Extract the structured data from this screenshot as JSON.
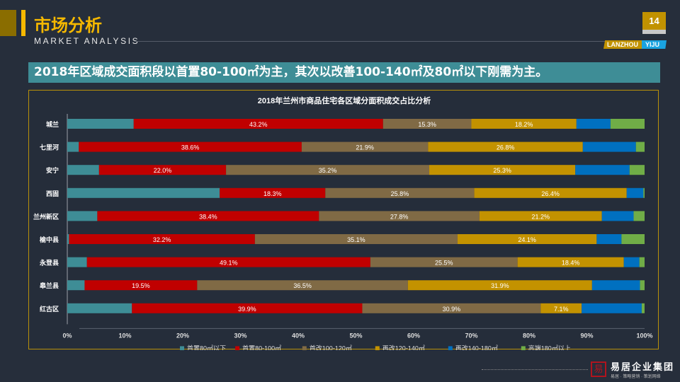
{
  "header": {
    "title": "市场分析",
    "subtitle": "MARKET ANALYSIS",
    "page_number": "14",
    "tag_left": "LANZHOU",
    "tag_right": "YIJU"
  },
  "banner": "2018年区域成交面积段以首置80-100㎡为主，其次以改善100-140㎡及80㎡以下刚需为主。",
  "logo": {
    "name": "易居企业集团",
    "seal": "易居",
    "tagline": "易居 · 策略营销 · 策划网络"
  },
  "chart_data": {
    "type": "bar",
    "orientation": "horizontal",
    "stacked": "percent",
    "title": "2018年兰州市商品住宅各区域分面积成交占比分析",
    "categories": [
      "城兰",
      "七里河",
      "安宁",
      "西固",
      "兰州新区",
      "榆中县",
      "永登县",
      "皋兰县",
      "红古区"
    ],
    "xlim": [
      0,
      100
    ],
    "xticks": [
      "0%",
      "10%",
      "20%",
      "30%",
      "40%",
      "50%",
      "60%",
      "70%",
      "80%",
      "90%",
      "100%"
    ],
    "legend_position": "bottom",
    "grid": false,
    "series": [
      {
        "name": "首置80㎡以下",
        "color": "#3e8d96",
        "values": [
          11.5,
          2.0,
          5.5,
          26.4,
          5.2,
          0.3,
          3.4,
          3.0,
          11.2
        ],
        "labeled": false
      },
      {
        "name": "首置80-100㎡",
        "color": "#c00000",
        "values": [
          43.2,
          38.6,
          22.0,
          18.3,
          38.4,
          32.2,
          49.1,
          19.5,
          39.9
        ],
        "labeled": true
      },
      {
        "name": "首改100-120㎡",
        "color": "#806a45",
        "values": [
          15.3,
          21.9,
          35.2,
          25.8,
          27.8,
          35.1,
          25.5,
          36.5,
          30.9
        ],
        "labeled": true
      },
      {
        "name": "再改120-140㎡",
        "color": "#c39200",
        "values": [
          18.2,
          26.8,
          25.3,
          26.4,
          21.2,
          24.1,
          18.4,
          31.9,
          7.1
        ],
        "labeled": true
      },
      {
        "name": "再改140-180㎡",
        "color": "#0070c0",
        "values": [
          5.9,
          9.2,
          9.4,
          2.9,
          5.5,
          4.3,
          2.7,
          8.3,
          10.4
        ],
        "labeled": false
      },
      {
        "name": "高端180㎡以上",
        "color": "#70ad47",
        "values": [
          5.9,
          1.5,
          2.6,
          0.2,
          1.9,
          4.0,
          0.9,
          0.8,
          0.5
        ],
        "labeled": false
      }
    ]
  }
}
